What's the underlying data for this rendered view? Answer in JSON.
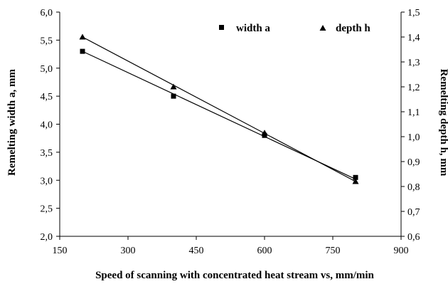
{
  "chart_data": {
    "type": "scatter",
    "xlabel": "Speed of scanning with concentrated heat stream vs, mm/min",
    "ylabel": "Remelting width a, mm",
    "y2label": "Remelting depth h, mm",
    "xlim": [
      150,
      900
    ],
    "ylim": [
      2.0,
      6.0
    ],
    "y2lim": [
      0.6,
      1.5
    ],
    "x_ticks": [
      "150",
      "300",
      "450",
      "600",
      "750",
      "900"
    ],
    "y_ticks": [
      "2,0",
      "2,5",
      "3,0",
      "3,5",
      "4,0",
      "4,5",
      "5,0",
      "5,5",
      "6,0"
    ],
    "y2_ticks": [
      "0,6",
      "0,7",
      "0,8",
      "0,9",
      "1,0",
      "1,1",
      "1,2",
      "1,3",
      "1,4",
      "1,5"
    ],
    "legend_position": "top-right",
    "grid": false,
    "series": [
      {
        "name": "width a",
        "axis": "left",
        "marker": "square",
        "x": [
          200,
          400,
          600,
          800
        ],
        "y": [
          5.3,
          4.5,
          3.8,
          3.05
        ],
        "trend": [
          [
            200,
            5.3
          ],
          [
            800,
            3.02
          ]
        ]
      },
      {
        "name": "depth h",
        "axis": "right",
        "marker": "triangle",
        "x": [
          200,
          400,
          600,
          800
        ],
        "y": [
          1.4,
          1.2,
          1.015,
          0.82
        ],
        "trend": [
          [
            200,
            1.4
          ],
          [
            800,
            0.82
          ]
        ]
      }
    ]
  }
}
